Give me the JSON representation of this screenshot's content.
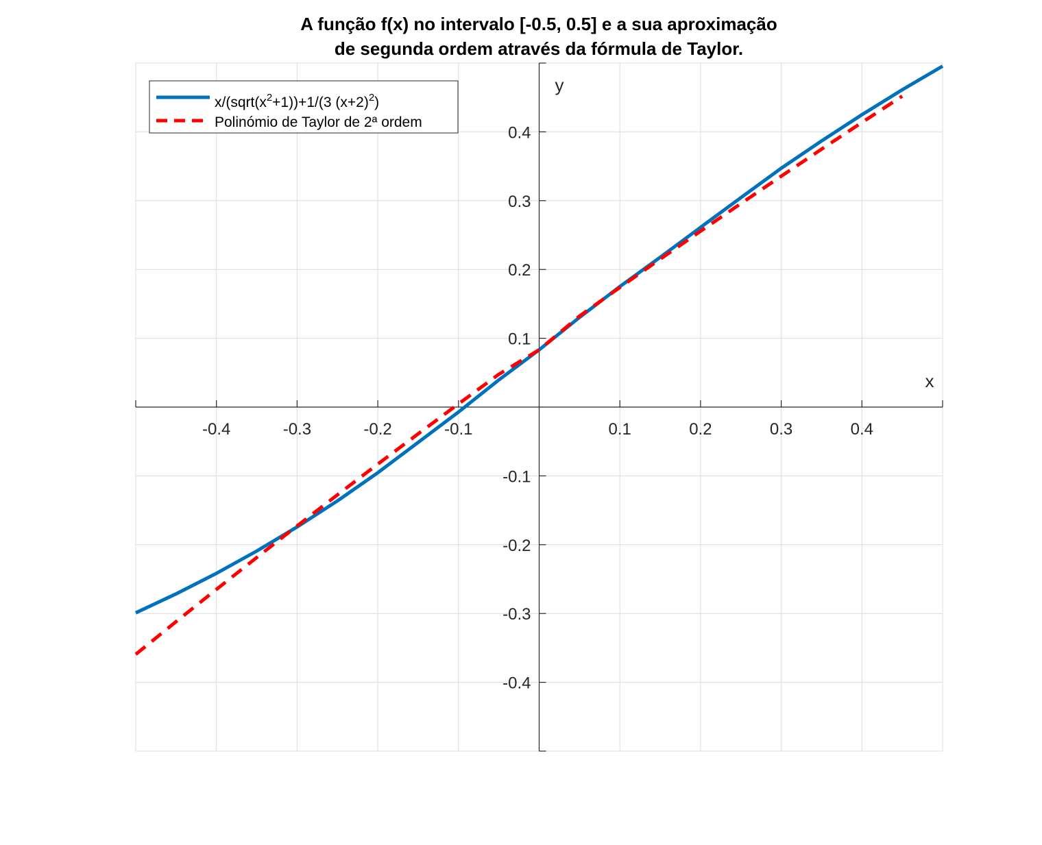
{
  "chart_data": {
    "type": "line",
    "title": [
      "A função f(x) no intervalo [-0.5, 0.5] e a sua aproximação",
      "de segunda ordem através da fórmula de Taylor."
    ],
    "xlabel": "x",
    "ylabel": "y",
    "xlim": [
      -0.5,
      0.5
    ],
    "ylim": [
      -0.5,
      0.5
    ],
    "xticks": [
      -0.4,
      -0.3,
      -0.2,
      -0.1,
      0.1,
      0.2,
      0.3,
      0.4
    ],
    "yticks": [
      0.4,
      0.3,
      0.2,
      0.1,
      -0.1,
      -0.2,
      -0.3,
      -0.4
    ],
    "xtick_labels": [
      "-0.4",
      "-0.3",
      "-0.2",
      "-0.1",
      "0.1",
      "0.2",
      "0.3",
      "0.4"
    ],
    "ytick_labels": [
      "0.4",
      "0.3",
      "0.2",
      "0.1",
      "-0.1",
      "-0.2",
      "-0.3",
      "-0.4"
    ],
    "grid": true,
    "legend_position": "top-left",
    "series": [
      {
        "name_parts": [
          "x/(sqrt(x",
          "2",
          "+1))+1/(3 (x+2)",
          "2",
          ")"
        ],
        "color": "#0072BD",
        "style": "solid",
        "x": [
          -0.5,
          -0.45,
          -0.4,
          -0.35,
          -0.3,
          -0.25,
          -0.2,
          -0.15,
          -0.1,
          -0.05,
          0,
          0.05,
          0.1,
          0.15,
          0.2,
          0.25,
          0.3,
          0.35,
          0.4,
          0.45,
          0.5
        ],
        "y": [
          -0.299,
          -0.2715,
          -0.2416,
          -0.2092,
          -0.1742,
          -0.1363,
          -0.0954,
          -0.0513,
          -0.0072,
          0.0394,
          0.0833,
          0.1304,
          0.1752,
          0.2177,
          0.2612,
          0.3044,
          0.3471,
          0.3868,
          0.4249,
          0.4612,
          0.4955
        ]
      },
      {
        "name": "Polinómio de Taylor de 2ª ordem",
        "color": "#FF0000",
        "style": "dashed",
        "x": [
          -0.5,
          -0.45,
          -0.4,
          -0.35,
          -0.3,
          -0.25,
          -0.2,
          -0.15,
          -0.1,
          -0.05,
          0,
          0.05,
          0.1,
          0.15,
          0.2,
          0.25,
          0.3,
          0.35,
          0.4,
          0.45
        ],
        "y": [
          -0.3594,
          -0.3119,
          -0.2649,
          -0.2185,
          -0.1727,
          -0.1275,
          -0.0829,
          -0.0388,
          0.0046,
          0.0476,
          0.0833,
          0.1323,
          0.1739,
          0.215,
          0.2557,
          0.2958,
          0.3356,
          0.3748,
          0.4136,
          0.4519
        ]
      }
    ]
  }
}
